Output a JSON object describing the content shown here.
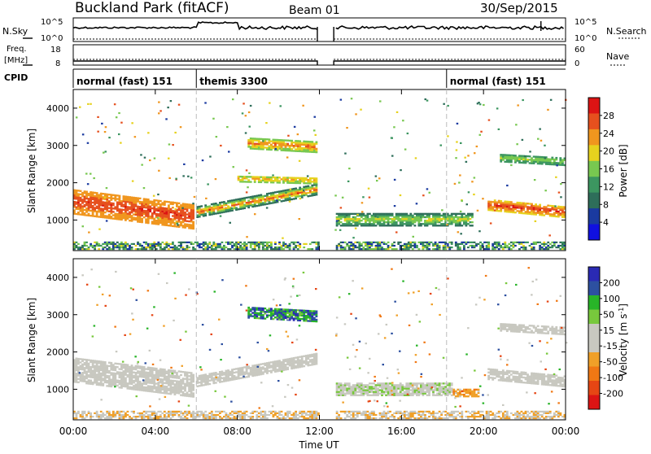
{
  "header": {
    "station": "Buckland Park (fitACF)",
    "beam": "Beam 01",
    "date": "30/Sep/2015"
  },
  "noise_panel": {
    "left_label": "N.Sky",
    "right_label": "N.Search",
    "left_top_tick": "10^5",
    "left_bottom_tick": "10^0",
    "right_top_tick": "10^5",
    "right_bottom_tick": "10^0"
  },
  "freq_panel": {
    "left_label_1": "Freq.",
    "left_label_2": "[MHz]",
    "right_label": "Nave",
    "left_top_tick": "18",
    "left_bottom_tick": "8",
    "right_top_tick": "60",
    "right_bottom_tick": "0"
  },
  "cpid": {
    "label": "CPID",
    "segments": [
      {
        "text": "normal (fast) 151",
        "start_hour": 0
      },
      {
        "text": "themis 3300",
        "start_hour": 6
      },
      {
        "text": "normal (fast) 151",
        "start_hour": 18.2
      }
    ]
  },
  "colors": {
    "power": [
      "#1010e0",
      "#1a3aa0",
      "#2e6e5a",
      "#3c9660",
      "#78c850",
      "#e6d21e",
      "#f0961e",
      "#e6501e",
      "#dc1414"
    ],
    "velocity": [
      "#2a2ab4",
      "#2d50a0",
      "#28b428",
      "#78c83c",
      "#c8c8c0",
      "#c8c8c0",
      "#f0a028",
      "#f07814",
      "#e64614",
      "#dc1414"
    ]
  },
  "chart_data": [
    {
      "type": "heatmap",
      "name": "power",
      "ylabel": "Slant Range [km]",
      "xlabel": "Time UT",
      "xlim": [
        0,
        24
      ],
      "ylim": [
        180,
        4500
      ],
      "xticks": [
        "00:00",
        "04:00",
        "08:00",
        "12:00",
        "16:00",
        "20:00",
        "00:00"
      ],
      "yticks": [
        "1000",
        "2000",
        "3000",
        "4000"
      ],
      "colorbar": {
        "label": "Power [dB]",
        "ticks": [
          "4",
          "8",
          "12",
          "16",
          "20",
          "24",
          "28"
        ],
        "range": [
          0,
          30
        ]
      },
      "data_gap_hours": [
        11.9,
        12.7
      ],
      "regions": [
        {
          "t": [
            0.0,
            5.8
          ],
          "r0": [
            1480,
            1080
          ],
          "r1": [
            1480,
            1080
          ],
          "w": 330,
          "level": [
            20,
            28
          ]
        },
        {
          "t": [
            6.0,
            11.8
          ],
          "r0": [
            1200,
            1800
          ],
          "r1": [
            1200,
            1800
          ],
          "w": 140,
          "level": [
            8,
            28
          ]
        },
        {
          "t": [
            8.5,
            11.8
          ],
          "r0": [
            3050,
            2950
          ],
          "r1": [
            3050,
            2950
          ],
          "w": 150,
          "level": [
            14,
            26
          ]
        },
        {
          "t": [
            8.0,
            11.8
          ],
          "r0": [
            2100,
            2050
          ],
          "r1": [
            2100,
            2050
          ],
          "w": 90,
          "level": [
            14,
            22
          ]
        },
        {
          "t": [
            12.8,
            19.5
          ],
          "r0": [
            1000,
            1000
          ],
          "r1": [
            1000,
            1000
          ],
          "w": 170,
          "level": [
            8,
            20
          ]
        },
        {
          "t": [
            20.2,
            24.0
          ],
          "r0": [
            1400,
            1200
          ],
          "r1": [
            1400,
            1200
          ],
          "w": 150,
          "level": [
            18,
            29
          ]
        },
        {
          "t": [
            20.8,
            24.0
          ],
          "r0": [
            2650,
            2550
          ],
          "r1": [
            2650,
            2550
          ],
          "w": 100,
          "level": [
            10,
            18
          ]
        }
      ]
    },
    {
      "type": "heatmap",
      "name": "velocity",
      "ylabel": "Slant Range [km]",
      "xlabel": "Time UT",
      "xlim": [
        0,
        24
      ],
      "ylim": [
        180,
        4500
      ],
      "xticks": [
        "00:00",
        "04:00",
        "08:00",
        "12:00",
        "16:00",
        "20:00",
        "00:00"
      ],
      "yticks": [
        "1000",
        "2000",
        "3000",
        "4000"
      ],
      "colorbar": {
        "label": "Velocity [m s^-1]",
        "ticks": [
          "200",
          "100",
          "50",
          "15",
          "-15",
          "-50",
          "-100",
          "-200"
        ],
        "range": [
          -250,
          250
        ]
      },
      "data_gap_hours": [
        11.9,
        12.7
      ],
      "regions": [
        {
          "t": [
            0.0,
            5.8
          ],
          "r0": [
            1500,
            1100
          ],
          "r1": [
            1500,
            1100
          ],
          "w": 320,
          "level": [
            -10,
            10
          ]
        },
        {
          "t": [
            6.0,
            11.8
          ],
          "r0": [
            1200,
            1800
          ],
          "r1": [
            1200,
            1800
          ],
          "w": 140,
          "level": [
            -20,
            20
          ]
        },
        {
          "t": [
            8.5,
            11.8
          ],
          "r0": [
            3050,
            2950
          ],
          "r1": [
            3050,
            2950
          ],
          "w": 150,
          "level": [
            80,
            220
          ]
        },
        {
          "t": [
            12.8,
            18.5
          ],
          "r0": [
            1000,
            1000
          ],
          "r1": [
            1000,
            1000
          ],
          "w": 180,
          "level": [
            20,
            60
          ]
        },
        {
          "t": [
            18.5,
            19.8
          ],
          "r0": [
            900,
            900
          ],
          "r1": [
            900,
            900
          ],
          "w": 110,
          "level": [
            -120,
            -40
          ]
        },
        {
          "t": [
            20.2,
            24.0
          ],
          "r0": [
            1400,
            1200
          ],
          "r1": [
            1400,
            1200
          ],
          "w": 150,
          "level": [
            -10,
            10
          ]
        },
        {
          "t": [
            20.8,
            24.0
          ],
          "r0": [
            2650,
            2550
          ],
          "r1": [
            2650,
            2550
          ],
          "w": 100,
          "level": [
            -10,
            10
          ]
        }
      ]
    }
  ]
}
